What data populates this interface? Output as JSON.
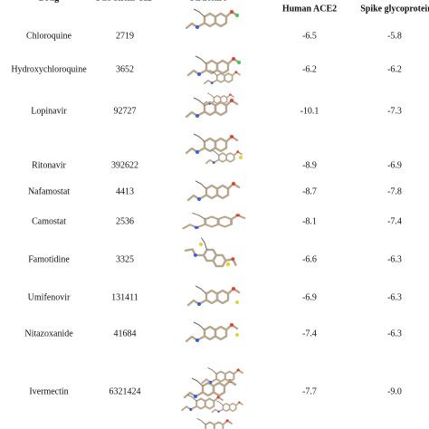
{
  "table": {
    "header": [
      "Drug",
      "PubChem CID",
      "Structure",
      "Human ACE2",
      "Spike glycoprotein"
    ],
    "rows": [
      [
        "Chloroquine",
        "2719",
        "-6.5",
        "-5.8"
      ],
      [
        "Hydroxychloroquine",
        "3652",
        "-6.2",
        "-6.2"
      ],
      [
        "Lopinavir",
        "92727",
        "-10.1",
        "-7.3"
      ],
      [
        "Ritonavir",
        "392622",
        "-8.9",
        "-6.9"
      ],
      [
        "Nafamostat",
        "4413",
        "-8.7",
        "-7.8"
      ],
      [
        "Camostat",
        "2536",
        "-8.1",
        "-7.4"
      ],
      [
        "Famotidine",
        "3325",
        "-6.6",
        "-6.3"
      ],
      [
        "Umifenovir",
        "131411",
        "-6.9",
        "-6.3"
      ],
      [
        "Nitazoxanide",
        "41684",
        "-7.4",
        "-6.3"
      ],
      [
        "Ivermectin",
        "6321424",
        "-7.7",
        "-9.0"
      ]
    ]
  }
}
